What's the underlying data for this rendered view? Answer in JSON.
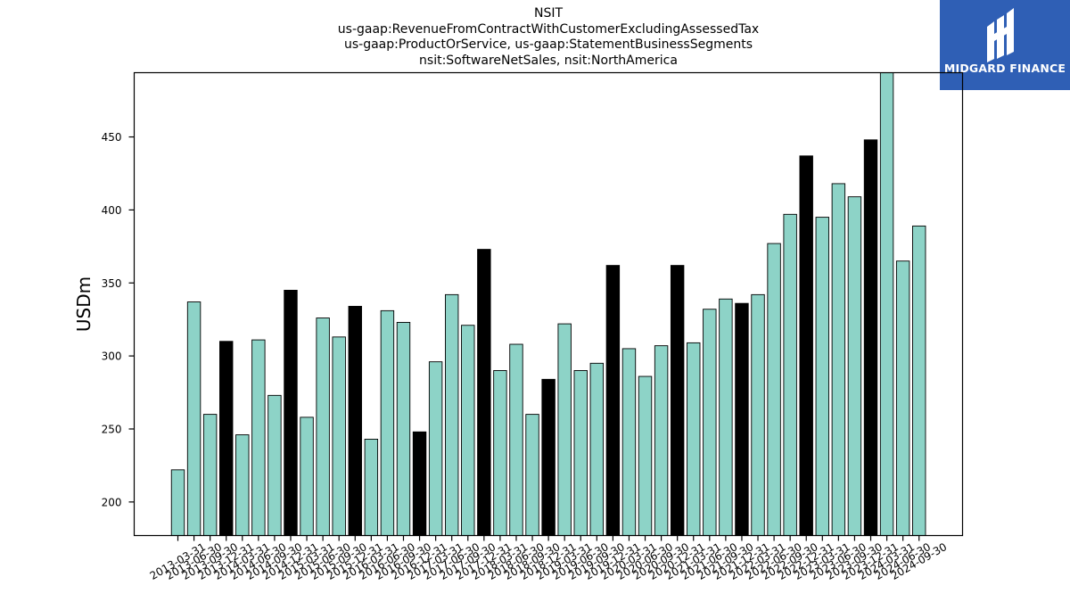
{
  "header": {
    "title_lines": [
      "NSIT",
      "us-gaap:RevenueFromContractWithCustomerExcludingAssessedTax",
      "us-gaap:ProductOrService, us-gaap:StatementBusinessSegments",
      "nsit:SoftwareNetSales, nsit:NorthAmerica"
    ]
  },
  "logo": {
    "text": "MIDGARD FINANCE",
    "color": "#2f5fb5"
  },
  "chart_data": {
    "type": "bar",
    "title": "NSIT\nus-gaap:RevenueFromContractWithCustomerExcludingAssessedTax\nus-gaap:ProductOrService, us-gaap:StatementBusinessSegments\nnsit:SoftwareNetSales, nsit:NorthAmerica",
    "xlabel": "",
    "ylabel": "USDm",
    "ylim": [
      177,
      494
    ],
    "yticks": [
      200,
      250,
      300,
      350,
      400,
      450
    ],
    "grid": false,
    "colors": {
      "default": "#8dd3c7",
      "highlight": "#000000",
      "edge": "#000000"
    },
    "categories": [
      "2013-03-31",
      "2013-06-30",
      "2013-09-30",
      "2013-12-31",
      "2014-03-31",
      "2014-06-30",
      "2014-09-30",
      "2014-12-31",
      "2015-03-31",
      "2015-06-30",
      "2015-09-30",
      "2015-12-31",
      "2016-03-31",
      "2016-06-30",
      "2016-09-30",
      "2016-12-31",
      "2017-03-31",
      "2017-06-30",
      "2017-09-30",
      "2017-12-31",
      "2018-03-31",
      "2018-06-30",
      "2018-09-30",
      "2018-12-31",
      "2019-03-31",
      "2019-06-30",
      "2019-09-30",
      "2019-12-31",
      "2020-03-31",
      "2020-06-30",
      "2020-09-30",
      "2020-12-31",
      "2021-03-31",
      "2021-06-30",
      "2021-09-30",
      "2021-12-31",
      "2022-03-31",
      "2022-06-30",
      "2022-09-30",
      "2022-12-31",
      "2023-03-31",
      "2023-06-30",
      "2023-09-30",
      "2023-12-31",
      "2024-03-31",
      "2024-06-30",
      "2024-09-30"
    ],
    "values": [
      222,
      337,
      260,
      310,
      246,
      311,
      273,
      345,
      258,
      326,
      313,
      334,
      243,
      331,
      323,
      248,
      296,
      342,
      321,
      373,
      290,
      308,
      260,
      284,
      322,
      290,
      295,
      362,
      305,
      286,
      307,
      362,
      309,
      332,
      339,
      336,
      342,
      377,
      397,
      437,
      395,
      418,
      409,
      448,
      494,
      365,
      389
    ],
    "highlight_categories": [
      "2013-12-31",
      "2014-12-31",
      "2015-12-31",
      "2016-12-31",
      "2017-12-31",
      "2018-12-31",
      "2019-12-31",
      "2020-12-31",
      "2021-12-31",
      "2022-12-31",
      "2023-12-31"
    ]
  }
}
